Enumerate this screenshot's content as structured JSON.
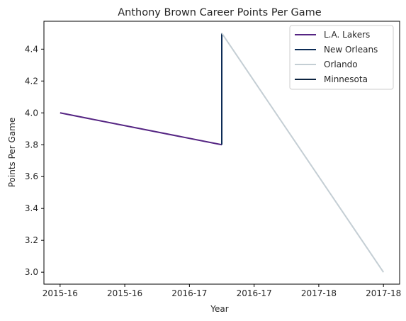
{
  "chart_data": {
    "type": "line",
    "title": "Anthony Brown  Career Points Per Game",
    "xlabel": "Year",
    "ylabel": "Points Per Game",
    "x_ticks": [
      "2015-16",
      "2015-16",
      "2016-17",
      "2016-17",
      "2017-18",
      "2017-18"
    ],
    "y_ticks": [
      "3.0",
      "3.2",
      "3.4",
      "3.6",
      "3.8",
      "4.0",
      "4.2",
      "4.4"
    ],
    "xlim": [
      -0.1,
      2.1
    ],
    "ylim": [
      2.925,
      4.575
    ],
    "legend_position": "top-right",
    "series": [
      {
        "name": "L.A. Lakers",
        "color": "#552583",
        "points": [
          {
            "x": 0.0,
            "y": 4.0
          },
          {
            "x": 1.0,
            "y": 3.8
          }
        ]
      },
      {
        "name": "New Orleans",
        "color": "#0C2C56",
        "points": [
          {
            "x": 1.0,
            "y": 3.8
          },
          {
            "x": 1.0,
            "y": 4.5
          }
        ]
      },
      {
        "name": "Orlando",
        "color": "#C4CED4",
        "points": [
          {
            "x": 1.0,
            "y": 4.5
          },
          {
            "x": 2.0,
            "y": 3.0
          }
        ]
      },
      {
        "name": "Minnesota",
        "color": "#0C2340",
        "points": []
      }
    ]
  }
}
